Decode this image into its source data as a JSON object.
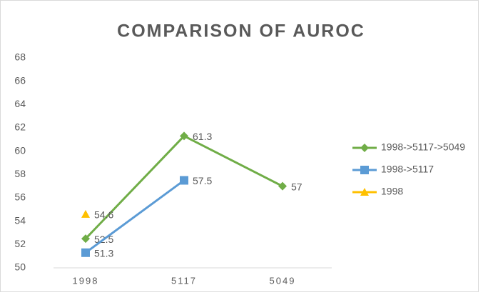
{
  "chart_data": {
    "type": "line",
    "title": "COMPARISON OF AUROC",
    "categories": [
      "1998",
      "5117",
      "5049"
    ],
    "series": [
      {
        "name": "1998->5117->5049",
        "color": "#70ad47",
        "marker": "diamond",
        "values": [
          52.5,
          61.3,
          57
        ]
      },
      {
        "name": "1998->5117",
        "color": "#5b9bd5",
        "marker": "square",
        "values": [
          51.3,
          57.5,
          null
        ]
      },
      {
        "name": "1998",
        "color": "#ffc000",
        "marker": "triangle",
        "values": [
          54.6,
          null,
          null
        ]
      }
    ],
    "ylim": [
      50,
      68
    ],
    "yticks": [
      50,
      52,
      54,
      56,
      58,
      60,
      62,
      64,
      66,
      68
    ],
    "grid": false,
    "legend": "right",
    "data_labels": true
  }
}
